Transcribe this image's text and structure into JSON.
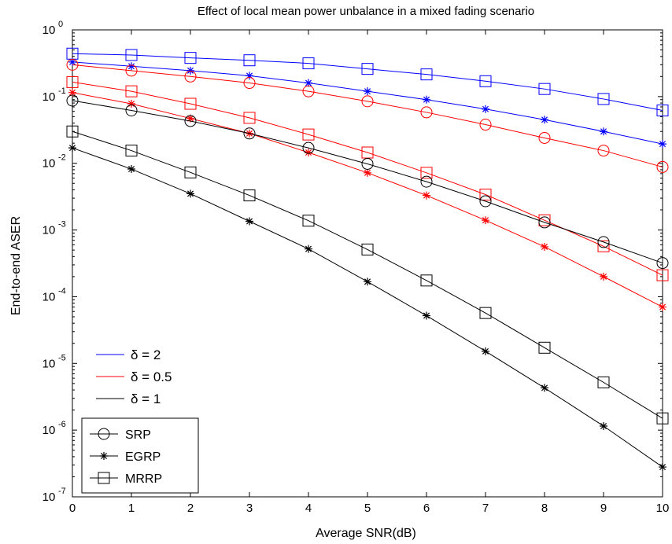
{
  "chart_data": {
    "type": "line",
    "title": "Effect of local mean power unbalance in a mixed fading scenario",
    "xlabel": "Average SNR(dB)",
    "ylabel": "End-to-end ASER",
    "xlim": [
      0,
      10
    ],
    "ylim": [
      1e-07,
      1
    ],
    "yscale": "log",
    "grid": false,
    "x": [
      0,
      1,
      2,
      3,
      4,
      5,
      6,
      7,
      8,
      9,
      10
    ],
    "x_ticks": [
      "0",
      "1",
      "2",
      "3",
      "4",
      "5",
      "6",
      "7",
      "8",
      "9",
      "10"
    ],
    "y_ticks": [
      {
        "base": "10",
        "exp": "0",
        "value": 1
      },
      {
        "base": "10",
        "exp": "-1",
        "value": 0.1
      },
      {
        "base": "10",
        "exp": "-2",
        "value": 0.01
      },
      {
        "base": "10",
        "exp": "-3",
        "value": 0.001
      },
      {
        "base": "10",
        "exp": "-4",
        "value": 0.0001
      },
      {
        "base": "10",
        "exp": "-5",
        "value": 1e-05
      },
      {
        "base": "10",
        "exp": "-6",
        "value": 1e-06
      },
      {
        "base": "10",
        "exp": "-7",
        "value": 1e-07
      }
    ],
    "legend_colors": {
      "placement": "lower-left",
      "entries": [
        {
          "label": "δ = 2",
          "color": "#0000ff"
        },
        {
          "label": "δ = 0.5",
          "color": "#ff0000"
        },
        {
          "label": "δ = 1",
          "color": "#000000"
        }
      ]
    },
    "legend_markers": {
      "placement": "bottom-left",
      "entries": [
        {
          "label": "SRP",
          "marker": "circle"
        },
        {
          "label": "EGRP",
          "marker": "star"
        },
        {
          "label": "MRRP",
          "marker": "square"
        }
      ]
    },
    "series": [
      {
        "color": "#0000ff",
        "marker": "square",
        "values": [
          0.44,
          0.42,
          0.38,
          0.35,
          0.315,
          0.26,
          0.215,
          0.17,
          0.13,
          0.092,
          0.062
        ]
      },
      {
        "color": "#0000ff",
        "marker": "star",
        "values": [
          0.33,
          0.285,
          0.245,
          0.205,
          0.16,
          0.12,
          0.09,
          0.065,
          0.045,
          0.03,
          0.0195
        ]
      },
      {
        "color": "#ff0000",
        "marker": "circle",
        "values": [
          0.3,
          0.245,
          0.2,
          0.16,
          0.12,
          0.085,
          0.058,
          0.038,
          0.024,
          0.0155,
          0.0088
        ]
      },
      {
        "color": "#ff0000",
        "marker": "square",
        "values": [
          0.165,
          0.12,
          0.078,
          0.048,
          0.027,
          0.0145,
          0.0072,
          0.0034,
          0.0014,
          0.00057,
          0.00021
        ]
      },
      {
        "color": "#ff0000",
        "marker": "star",
        "values": [
          0.115,
          0.078,
          0.047,
          0.028,
          0.0145,
          0.0072,
          0.0033,
          0.0014,
          0.00056,
          0.0002,
          7e-05
        ]
      },
      {
        "color": "#000000",
        "marker": "circle",
        "values": [
          0.087,
          0.062,
          0.043,
          0.028,
          0.017,
          0.0098,
          0.0053,
          0.0027,
          0.0013,
          0.00066,
          0.00032
        ]
      },
      {
        "color": "#000000",
        "marker": "square",
        "values": [
          0.03,
          0.0155,
          0.0073,
          0.0033,
          0.00138,
          0.00051,
          0.000175,
          5.7e-05,
          1.72e-05,
          5.2e-06,
          1.5e-06
        ]
      },
      {
        "color": "#000000",
        "marker": "star",
        "values": [
          0.017,
          0.0082,
          0.0035,
          0.00135,
          0.00052,
          0.000168,
          5.2e-05,
          1.52e-05,
          4.3e-06,
          1.15e-06,
          2.8e-07
        ]
      }
    ]
  }
}
